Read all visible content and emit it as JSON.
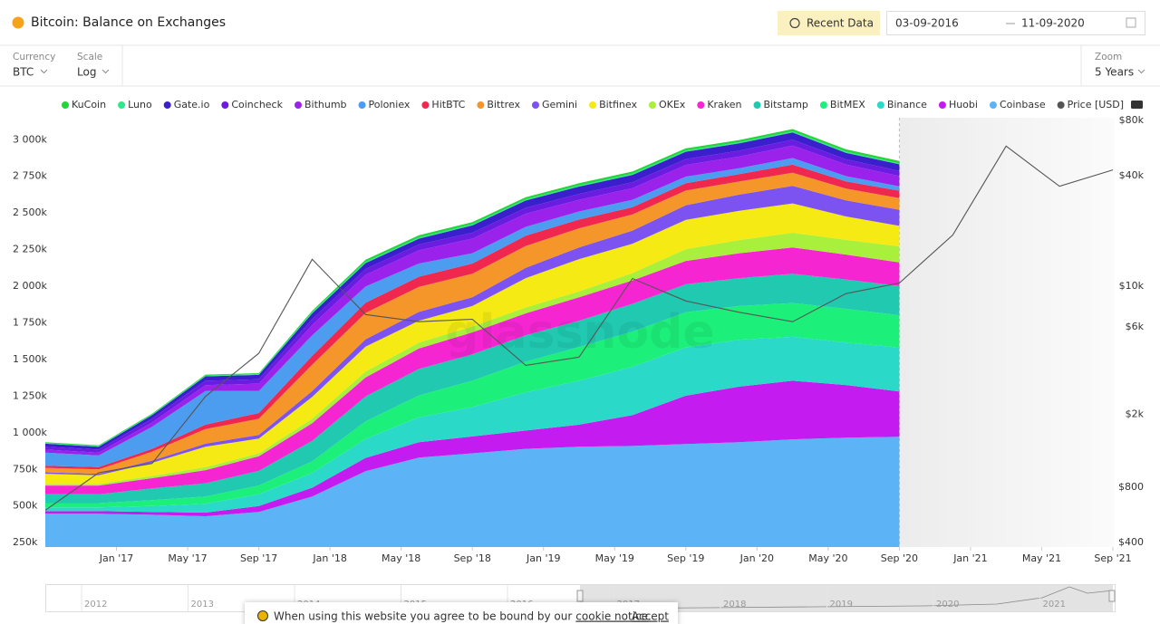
{
  "header": {
    "title": "Bitcoin: Balance on Exchanges",
    "button": "Recent Data",
    "date_from": "03-09-2016",
    "date_to": "11-09-2020"
  },
  "controls": {
    "currency_label": "Currency",
    "currency": "BTC",
    "scale_label": "Scale",
    "scale": "Log",
    "zoom_label": "Zoom",
    "zoom": "5 Years"
  },
  "watermark": "glassnode",
  "navigator": {
    "years": [
      "2012",
      "2013",
      "2014",
      "2015",
      "2016",
      "2017",
      "2018",
      "2019",
      "2020",
      "2021"
    ]
  },
  "cookie": {
    "text": "When using this website you agree to be bound by our",
    "link": "cookie notice",
    "suffix": ".",
    "accept": "Accept"
  },
  "chart_data": {
    "type": "stacked_area",
    "grid": false,
    "legend": "top",
    "x": [
      "2016-09",
      "2016-12",
      "2017-03",
      "2017-06",
      "2017-09",
      "2017-12",
      "2018-03",
      "2018-06",
      "2018-09",
      "2018-12",
      "2019-03",
      "2019-06",
      "2019-09",
      "2019-12",
      "2020-03",
      "2020-06",
      "2020-09",
      "2020-12",
      "2021-03",
      "2021-06",
      "2021-09"
    ],
    "xlim": [
      "2016-09",
      "2021-09"
    ],
    "xticks": [
      {
        "value": "2017-01",
        "label": "Jan '17"
      },
      {
        "value": "2017-05",
        "label": "May '17"
      },
      {
        "value": "2017-09",
        "label": "Sep '17"
      },
      {
        "value": "2018-01",
        "label": "Jan '18"
      },
      {
        "value": "2018-05",
        "label": "May '18"
      },
      {
        "value": "2018-09",
        "label": "Sep '18"
      },
      {
        "value": "2019-01",
        "label": "Jan '19"
      },
      {
        "value": "2019-05",
        "label": "May '19"
      },
      {
        "value": "2019-09",
        "label": "Sep '19"
      },
      {
        "value": "2020-01",
        "label": "Jan '20"
      },
      {
        "value": "2020-05",
        "label": "May '20"
      },
      {
        "value": "2020-09",
        "label": "Sep '20"
      },
      {
        "value": "2021-01",
        "label": "Jan '21"
      },
      {
        "value": "2021-05",
        "label": "May '21"
      },
      {
        "value": "2021-09",
        "label": "Sep '21"
      }
    ],
    "ylim": [
      220000,
      3150000
    ],
    "yticks": [
      {
        "value": 250000,
        "label": "250k"
      },
      {
        "value": 500000,
        "label": "500k"
      },
      {
        "value": 750000,
        "label": "750k"
      },
      {
        "value": 1000000,
        "label": "1 000k"
      },
      {
        "value": 1250000,
        "label": "1 250k"
      },
      {
        "value": 1500000,
        "label": "1 500k"
      },
      {
        "value": 1750000,
        "label": "1 750k"
      },
      {
        "value": 2000000,
        "label": "2 000k"
      },
      {
        "value": 2250000,
        "label": "2 250k"
      },
      {
        "value": 2500000,
        "label": "2 500k"
      },
      {
        "value": 2750000,
        "label": "2 750k"
      },
      {
        "value": 3000000,
        "label": "3 000k"
      }
    ],
    "y2lim": [
      378,
      82800
    ],
    "y2log": true,
    "y2ticks": [
      {
        "value": 400,
        "label": "$400"
      },
      {
        "value": 800,
        "label": "$800"
      },
      {
        "value": 2000,
        "label": "$2k"
      },
      {
        "value": 6000,
        "label": "$6k"
      },
      {
        "value": 10000,
        "label": "$10k"
      },
      {
        "value": 40000,
        "label": "$40k"
      },
      {
        "value": 80000,
        "label": "$80k"
      }
    ],
    "series": [
      {
        "name": "KuCoin",
        "color": "#22d63a",
        "values": [
          5000,
          5000,
          5000,
          6000,
          6000,
          10000,
          15000,
          15000,
          15000,
          15000,
          15000,
          15000,
          15000,
          15000,
          15000,
          15000,
          15000,
          null,
          null,
          null,
          null
        ]
      },
      {
        "name": "Luno",
        "color": "#2ee88b",
        "values": [
          5000,
          5000,
          5000,
          6000,
          6000,
          8000,
          8000,
          8000,
          8000,
          8000,
          8000,
          8000,
          8000,
          8000,
          8000,
          8000,
          8000,
          null,
          null,
          null,
          null
        ]
      },
      {
        "name": "Gate.io",
        "color": "#3b1fcc",
        "values": [
          20000,
          20000,
          25000,
          30000,
          30000,
          40000,
          40000,
          40000,
          50000,
          50000,
          50000,
          50000,
          50000,
          50000,
          50000,
          45000,
          45000,
          null,
          null,
          null,
          null
        ]
      },
      {
        "name": "Coincheck",
        "color": "#6a1ce0",
        "values": [
          20000,
          20000,
          25000,
          30000,
          30000,
          40000,
          40000,
          40000,
          40000,
          40000,
          40000,
          40000,
          40000,
          40000,
          40000,
          35000,
          35000,
          null,
          null,
          null,
          null
        ]
      },
      {
        "name": "Bithumb",
        "color": "#9b22ea",
        "values": [
          20000,
          20000,
          30000,
          40000,
          50000,
          70000,
          80000,
          90000,
          100000,
          90000,
          80000,
          80000,
          80000,
          80000,
          85000,
          80000,
          70000,
          null,
          null,
          null,
          null
        ]
      },
      {
        "name": "Poloniex",
        "color": "#4c9cf0",
        "values": [
          90000,
          80000,
          150000,
          230000,
          150000,
          140000,
          110000,
          90000,
          70000,
          60000,
          55000,
          50000,
          45000,
          40000,
          45000,
          35000,
          30000,
          null,
          null,
          null,
          null
        ]
      },
      {
        "name": "HitBTC",
        "color": "#f0284f",
        "values": [
          15000,
          15000,
          20000,
          30000,
          40000,
          60000,
          70000,
          70000,
          70000,
          70000,
          60000,
          50000,
          50000,
          50000,
          55000,
          50000,
          50000,
          null,
          null,
          null,
          null
        ]
      },
      {
        "name": "Bittrex",
        "color": "#f5962a",
        "values": [
          30000,
          30000,
          60000,
          100000,
          110000,
          180000,
          180000,
          170000,
          160000,
          150000,
          130000,
          110000,
          100000,
          90000,
          90000,
          80000,
          80000,
          null,
          null,
          null,
          null
        ]
      },
      {
        "name": "Gemini",
        "color": "#7c52f0",
        "values": [
          10000,
          10000,
          15000,
          20000,
          25000,
          40000,
          50000,
          60000,
          60000,
          70000,
          80000,
          90000,
          100000,
          110000,
          120000,
          110000,
          110000,
          null,
          null,
          null,
          null
        ]
      },
      {
        "name": "Bitfinex",
        "color": "#f5ea14",
        "values": [
          70000,
          60000,
          90000,
          140000,
          100000,
          150000,
          170000,
          150000,
          140000,
          200000,
          220000,
          200000,
          200000,
          200000,
          200000,
          160000,
          140000,
          null,
          null,
          null,
          null
        ]
      },
      {
        "name": "OKEx",
        "color": "#a8f03c",
        "values": [
          10000,
          10000,
          15000,
          20000,
          20000,
          30000,
          40000,
          40000,
          40000,
          40000,
          40000,
          50000,
          80000,
          90000,
          100000,
          100000,
          110000,
          null,
          null,
          null,
          null
        ]
      },
      {
        "name": "Kraken",
        "color": "#f526d2",
        "values": [
          60000,
          60000,
          70000,
          90000,
          100000,
          120000,
          130000,
          140000,
          150000,
          150000,
          160000,
          160000,
          160000,
          170000,
          180000,
          170000,
          160000,
          null,
          null,
          null,
          null
        ]
      },
      {
        "name": "Bitstamp",
        "color": "#20c9b0",
        "values": [
          60000,
          60000,
          80000,
          90000,
          100000,
          140000,
          170000,
          180000,
          180000,
          180000,
          180000,
          190000,
          190000,
          190000,
          200000,
          200000,
          200000,
          null,
          null,
          null,
          null
        ]
      },
      {
        "name": "BitMEX",
        "color": "#1cf07a",
        "values": [
          30000,
          30000,
          40000,
          50000,
          60000,
          80000,
          120000,
          150000,
          180000,
          210000,
          230000,
          240000,
          240000,
          230000,
          230000,
          230000,
          220000,
          null,
          null,
          null,
          null
        ]
      },
      {
        "name": "Binance",
        "color": "#2ad9c8",
        "values": [
          25000,
          25000,
          40000,
          60000,
          80000,
          100000,
          130000,
          170000,
          200000,
          260000,
          300000,
          330000,
          330000,
          320000,
          300000,
          290000,
          300000,
          null,
          null,
          null,
          null
        ]
      },
      {
        "name": "Huobi",
        "color": "#c41cf0",
        "values": [
          18000,
          18000,
          20000,
          25000,
          40000,
          60000,
          90000,
          105000,
          115000,
          125000,
          150000,
          210000,
          330000,
          380000,
          400000,
          360000,
          310000,
          null,
          null,
          null,
          null
        ]
      },
      {
        "name": "Coinbase",
        "color": "#5cb4f7",
        "values": [
          447000,
          447000,
          440000,
          430000,
          460000,
          565000,
          738000,
          830000,
          860000,
          890000,
          905000,
          910000,
          923000,
          935000,
          955000,
          966000,
          972000,
          null,
          null,
          null,
          null
        ]
      },
      {
        "name": "Price [USD]",
        "color": "#555555",
        "axis": "y2",
        "values": [
          600,
          960,
          1080,
          2500,
          4300,
          14000,
          7000,
          6400,
          6600,
          3700,
          4100,
          11000,
          8300,
          7200,
          6400,
          9100,
          10400,
          19000,
          58000,
          35000,
          43000
        ]
      }
    ]
  }
}
